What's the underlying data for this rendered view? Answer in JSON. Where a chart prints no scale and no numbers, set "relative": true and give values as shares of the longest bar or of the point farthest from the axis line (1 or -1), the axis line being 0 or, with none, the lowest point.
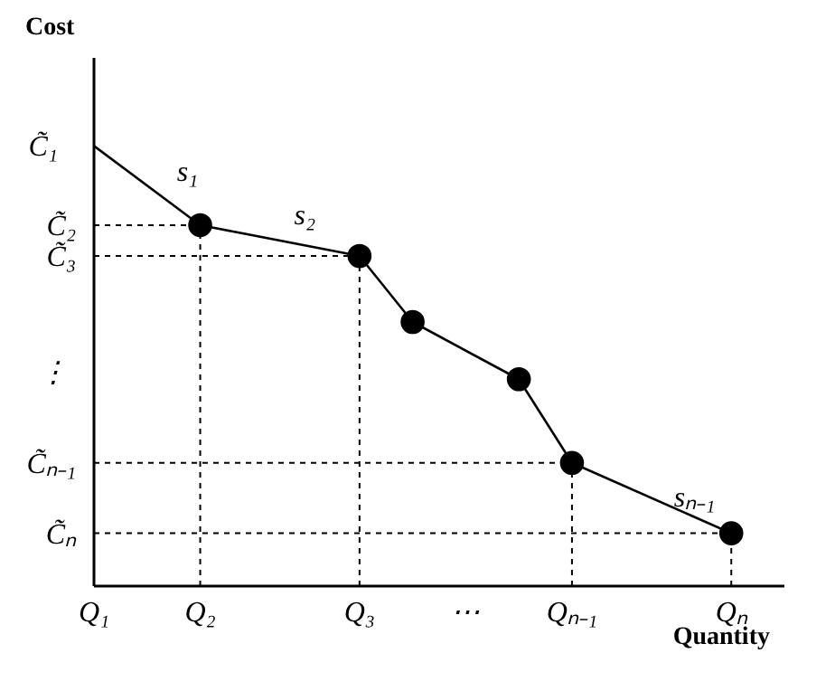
{
  "chart_data": {
    "type": "line",
    "xlabel": "Quantity",
    "ylabel": "Cost",
    "relative": true,
    "categories": [
      "Q₁",
      null,
      "Q₂",
      null,
      null,
      "Q₃",
      null,
      "⋯",
      null,
      "Qₙ₋₁",
      null,
      null,
      "Qₙ"
    ],
    "series": [
      {
        "color": "#000000",
        "values": [
          1.0,
          null,
          0.82,
          null,
          null,
          null,
          null,
          null,
          null,
          null,
          null,
          null,
          null
        ],
        "marker": "none"
      },
      {
        "color": "#000000",
        "values": [
          null,
          null,
          0.82,
          null,
          null,
          0.75,
          0.6,
          null,
          0.47,
          0.28,
          null,
          null,
          0.12
        ],
        "marker": "circle"
      }
    ],
    "ref_lines": [
      {
        "axis": "x",
        "value": "Q₂",
        "line_style": "dashed",
        "color": "#000000"
      },
      {
        "axis": "x",
        "value": "Q₃",
        "line_style": "dashed",
        "color": "#000000"
      },
      {
        "axis": "x",
        "value": "Qₙ₋₁",
        "line_style": "dashed",
        "color": "#000000"
      },
      {
        "axis": "x",
        "value": "Qₙ",
        "line_style": "dashed",
        "color": "#000000"
      },
      {
        "axis": "y",
        "value": 0.82,
        "label": "C̃₂",
        "line_style": "dashed",
        "color": "#000000"
      },
      {
        "axis": "y",
        "value": 0.75,
        "label": "C̃₃",
        "line_style": "dashed",
        "color": "#000000"
      },
      {
        "axis": "y",
        "value": 0.28,
        "label": "C̃ₙ₋₁",
        "line_style": "dashed",
        "color": "#000000"
      },
      {
        "axis": "y",
        "value": 0.12,
        "label": "C̃ₙ",
        "line_style": "dashed",
        "color": "#000000"
      }
    ],
    "annotations": [
      "s₁",
      "s₂",
      "sₙ₋₁",
      "⋮",
      "C̃₁"
    ],
    "line_style": "solid"
  }
}
